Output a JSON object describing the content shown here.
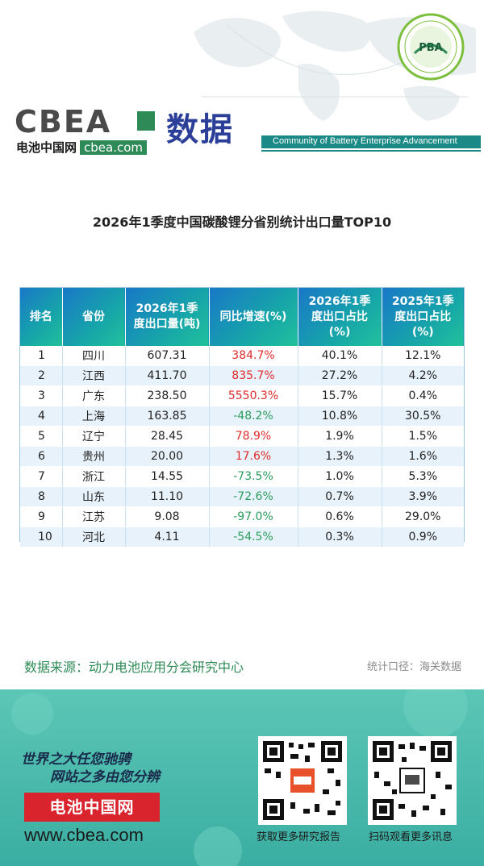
{
  "seal": {
    "text": "PBA"
  },
  "header": {
    "logo_main": "CBEA",
    "logo_cn": "电池中国网",
    "logo_url": "cbea.com",
    "shuju": "数据",
    "community": "Community of Battery Enterprise Advancement"
  },
  "title": "2026年1季度中国碳酸锂分省别统计出口量TOP10",
  "table": {
    "headers": [
      "排名",
      "省份",
      "2026年1季度出口量(吨)",
      "同比增速(%)",
      "2026年1季度出口占比(%)",
      "2025年1季度出口占比(%)"
    ],
    "header_lines": [
      [
        "排名"
      ],
      [
        "省份"
      ],
      [
        "2026年1季",
        "度出口量(吨)"
      ],
      [
        "同比增速(%)"
      ],
      [
        "2026年1季",
        "度出口占比",
        "(%)"
      ],
      [
        "2025年1季",
        "度出口占比",
        "(%)"
      ]
    ],
    "rows": [
      {
        "rank": "1",
        "province": "四川",
        "volume": "607.31",
        "growth": "384.7%",
        "trend": "up",
        "share2026": "40.1%",
        "share2025": "12.1%"
      },
      {
        "rank": "2",
        "province": "江西",
        "volume": "411.70",
        "growth": "835.7%",
        "trend": "up",
        "share2026": "27.2%",
        "share2025": "4.2%"
      },
      {
        "rank": "3",
        "province": "广东",
        "volume": "238.50",
        "growth": "5550.3%",
        "trend": "up",
        "share2026": "15.7%",
        "share2025": "0.4%"
      },
      {
        "rank": "4",
        "province": "上海",
        "volume": "163.85",
        "growth": "-48.2%",
        "trend": "down",
        "share2026": "10.8%",
        "share2025": "30.5%"
      },
      {
        "rank": "5",
        "province": "辽宁",
        "volume": "28.45",
        "growth": "78.9%",
        "trend": "up",
        "share2026": "1.9%",
        "share2025": "1.5%"
      },
      {
        "rank": "6",
        "province": "贵州",
        "volume": "20.00",
        "growth": "17.6%",
        "trend": "up",
        "share2026": "1.3%",
        "share2025": "1.6%"
      },
      {
        "rank": "7",
        "province": "浙江",
        "volume": "14.55",
        "growth": "-73.5%",
        "trend": "down",
        "share2026": "1.0%",
        "share2025": "5.3%"
      },
      {
        "rank": "8",
        "province": "山东",
        "volume": "11.10",
        "growth": "-72.6%",
        "trend": "down",
        "share2026": "0.7%",
        "share2025": "3.9%"
      },
      {
        "rank": "9",
        "province": "江苏",
        "volume": "9.08",
        "growth": "-97.0%",
        "trend": "down",
        "share2026": "0.6%",
        "share2025": "29.0%"
      },
      {
        "rank": "10",
        "province": "河北",
        "volume": "4.11",
        "growth": "-54.5%",
        "trend": "down",
        "share2026": "0.3%",
        "share2025": "0.9%"
      }
    ]
  },
  "source": "数据来源：动力电池应用分会研究中心",
  "scope": "统计口径：海关数据",
  "footer": {
    "slogan1": "世界之大任您驰骋",
    "slogan2": "网站之多由您分辨",
    "red_label": "电池中国网",
    "url": "www.cbea.com",
    "qr1_caption": "获取更多研究报告",
    "qr2_caption": "扫码观看更多讯息"
  },
  "colors": {
    "accent_teal": "#1b8a86",
    "brand_blue": "#2b3f99",
    "up_red": "#e02b2b",
    "down_green": "#2a9d5c",
    "footer_teal": "#3aaea2",
    "button_red": "#d9232d"
  },
  "icons": [
    "world-map-background",
    "pba-seal-icon",
    "cbea-logo-icon",
    "qr-code-icon"
  ]
}
